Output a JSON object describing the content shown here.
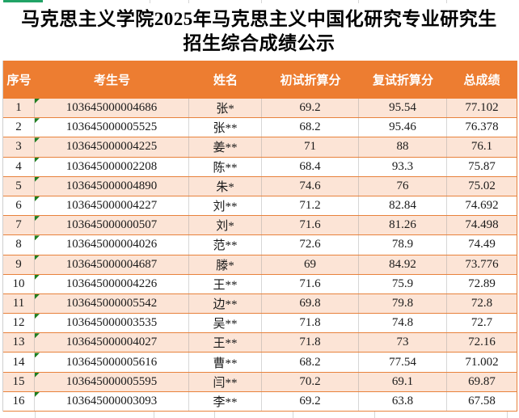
{
  "title": {
    "line1": "马克思主义学院2025年马克思主义中国化研究专业研究生",
    "line2": "招生综合成绩公示"
  },
  "table": {
    "headers": [
      "序号",
      "考生号",
      "姓名",
      "初试折算分",
      "复试折算分",
      "总成绩"
    ],
    "rows": [
      {
        "no": "1",
        "candidate_id": "103645000004686",
        "name": "张*",
        "initial_score": "69.2",
        "retest_score": "95.54",
        "total_score": "77.102"
      },
      {
        "no": "2",
        "candidate_id": "103645000005525",
        "name": "张**",
        "initial_score": "68.2",
        "retest_score": "95.46",
        "total_score": "76.378"
      },
      {
        "no": "3",
        "candidate_id": "103645000004225",
        "name": "姜**",
        "initial_score": "71",
        "retest_score": "88",
        "total_score": "76.1"
      },
      {
        "no": "4",
        "candidate_id": "103645000002208",
        "name": "陈**",
        "initial_score": "68.4",
        "retest_score": "93.3",
        "total_score": "75.87"
      },
      {
        "no": "5",
        "candidate_id": "103645000004890",
        "name": "朱*",
        "initial_score": "74.6",
        "retest_score": "76",
        "total_score": "75.02"
      },
      {
        "no": "6",
        "candidate_id": "103645000004227",
        "name": "刘**",
        "initial_score": "71.2",
        "retest_score": "82.84",
        "total_score": "74.692"
      },
      {
        "no": "7",
        "candidate_id": "103645000000507",
        "name": "刘*",
        "initial_score": "71.6",
        "retest_score": "81.26",
        "total_score": "74.498"
      },
      {
        "no": "8",
        "candidate_id": "103645000004026",
        "name": "范**",
        "initial_score": "72.6",
        "retest_score": "78.9",
        "total_score": "74.49"
      },
      {
        "no": "9",
        "candidate_id": "103645000004687",
        "name": "滕*",
        "initial_score": "69",
        "retest_score": "84.92",
        "total_score": "73.776"
      },
      {
        "no": "10",
        "candidate_id": "103645000004226",
        "name": "王**",
        "initial_score": "71.6",
        "retest_score": "75.9",
        "total_score": "72.89"
      },
      {
        "no": "11",
        "candidate_id": "103645000005542",
        "name": "边**",
        "initial_score": "69.8",
        "retest_score": "79.8",
        "total_score": "72.8"
      },
      {
        "no": "12",
        "candidate_id": "103645000003535",
        "name": "吴**",
        "initial_score": "71.8",
        "retest_score": "74.8",
        "total_score": "72.7"
      },
      {
        "no": "13",
        "candidate_id": "103645000004027",
        "name": "王**",
        "initial_score": "71.8",
        "retest_score": "73",
        "total_score": "72.16"
      },
      {
        "no": "14",
        "candidate_id": "103645000005616",
        "name": "曹**",
        "initial_score": "68.2",
        "retest_score": "77.54",
        "total_score": "71.002"
      },
      {
        "no": "15",
        "candidate_id": "103645000005595",
        "name": "闫**",
        "initial_score": "70.2",
        "retest_score": "69.1",
        "total_score": "69.87"
      },
      {
        "no": "16",
        "candidate_id": "103645000003093",
        "name": "李**",
        "initial_score": "69.2",
        "retest_score": "63.8",
        "total_score": "67.58"
      }
    ]
  },
  "colors": {
    "header_orange": "#ED7D31",
    "row_peach": "#FCE4D6",
    "border_orange": "#E8823C",
    "grid_gray": "#D6D6D6",
    "indicator_green": "#1E7E1E",
    "accent_teal": "#21A366"
  },
  "layout_marks": {
    "top_gridline_x": [
      185,
      233,
      323,
      443,
      552
    ],
    "bottom_gridline_x": [
      43,
      190,
      265,
      362,
      463,
      627
    ]
  }
}
